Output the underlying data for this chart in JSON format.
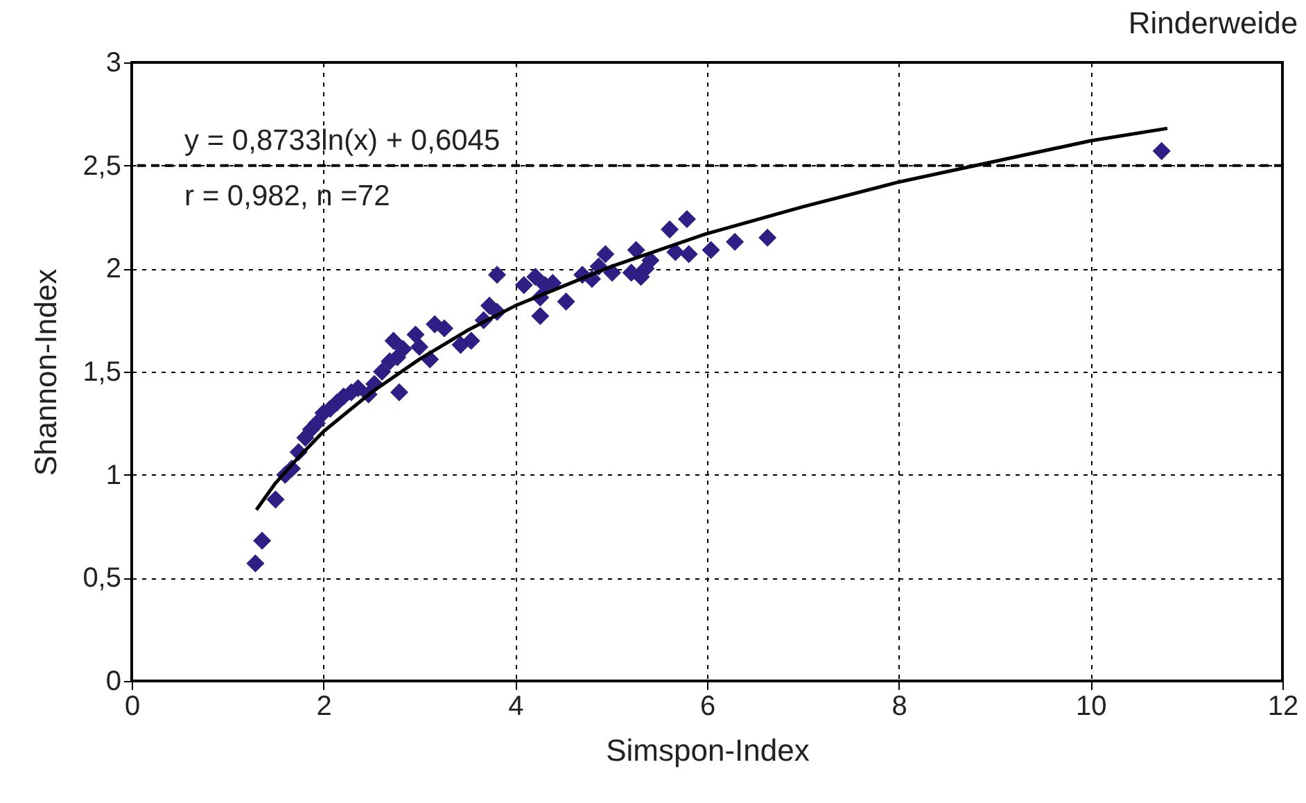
{
  "chart_data": {
    "type": "scatter",
    "title": "Rinderweide",
    "xlabel": "Simspon-Index",
    "ylabel": "Shannon-Index",
    "annotations": [
      "y = 0,8733ln(x) + 0,6045",
      "r = 0,982, n =72"
    ],
    "xlim": [
      0,
      12
    ],
    "xticks": [
      0,
      2,
      4,
      6,
      8,
      10,
      12
    ],
    "ylim": [
      0,
      3
    ],
    "yticks": [
      0,
      {
        "value": 0.5,
        "label": "0,5"
      },
      1,
      {
        "value": 1.5,
        "label": "1,5"
      },
      2,
      {
        "value": 2.5,
        "label": "2,5"
      },
      3
    ],
    "grid": true,
    "series": [
      {
        "marker": "diamond",
        "color": "#2e1f85",
        "x": [
          1.29,
          1.36,
          1.5,
          1.6,
          1.67,
          1.74,
          1.81,
          1.87,
          1.93,
          2.0,
          2.07,
          2.14,
          2.21,
          2.29,
          2.36,
          2.47,
          2.53,
          2.61,
          2.69,
          2.73,
          2.77,
          2.79,
          2.83,
          2.96,
          3.0,
          3.11,
          3.16,
          3.26,
          3.43,
          3.54,
          3.67,
          3.73,
          3.81,
          3.81,
          4.09,
          4.21,
          4.26,
          4.26,
          4.31,
          4.39,
          4.53,
          4.7,
          4.8,
          4.87,
          4.94,
          5.01,
          5.21,
          5.26,
          5.31,
          5.36,
          5.41,
          5.61,
          5.67,
          5.79,
          5.81,
          6.04,
          6.29,
          6.63,
          10.74
        ],
        "values": [
          0.57,
          0.68,
          0.88,
          1.0,
          1.03,
          1.11,
          1.18,
          1.22,
          1.25,
          1.3,
          1.32,
          1.35,
          1.38,
          1.4,
          1.42,
          1.39,
          1.44,
          1.5,
          1.55,
          1.65,
          1.57,
          1.4,
          1.61,
          1.68,
          1.62,
          1.56,
          1.73,
          1.71,
          1.63,
          1.65,
          1.75,
          1.82,
          1.97,
          1.79,
          1.92,
          1.96,
          1.77,
          1.86,
          1.92,
          1.93,
          1.84,
          1.97,
          1.95,
          2.01,
          2.07,
          1.98,
          1.98,
          2.09,
          1.96,
          2.0,
          2.04,
          2.19,
          2.08,
          2.24,
          2.07,
          2.09,
          2.13,
          2.15,
          2.57
        ]
      },
      {
        "type": "line",
        "marker": "none",
        "color": "#000000",
        "x": [
          1.3,
          1.5,
          1.75,
          2,
          2.5,
          3,
          3.5,
          4,
          5,
          6,
          7,
          8,
          9,
          10,
          10.8
        ],
        "values": [
          0.83,
          0.96,
          1.09,
          1.21,
          1.4,
          1.56,
          1.7,
          1.82,
          2.01,
          2.17,
          2.3,
          2.42,
          2.52,
          2.62,
          2.68
        ]
      }
    ],
    "ref_lines": [
      {
        "axis": "y",
        "value": 2.5,
        "line_style": "dashed",
        "color": "#000000"
      }
    ]
  }
}
